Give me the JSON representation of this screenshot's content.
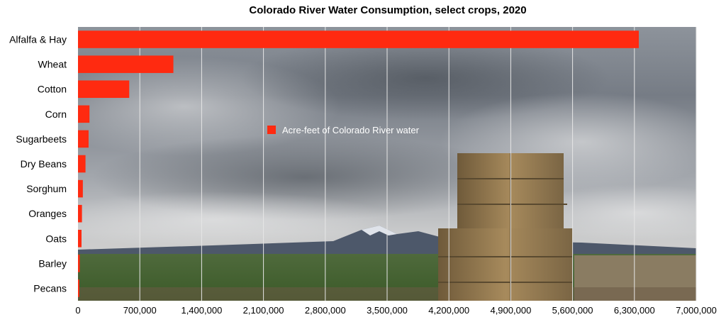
{
  "chart_data": {
    "type": "bar",
    "orientation": "horizontal",
    "title": "Colorado River Water Consumption, select crops, 2020",
    "xlabel": "",
    "ylabel": "",
    "categories": [
      "Alfalfa & Hay",
      "Wheat",
      "Cotton",
      "Corn",
      "Sugarbeets",
      "Dry Beans",
      "Sorghum",
      "Oranges",
      "Oats",
      "Barley",
      "Pecans"
    ],
    "series": [
      {
        "name": "Acre-feet of Colorado River water",
        "values": [
          6350000,
          1080000,
          580000,
          130000,
          120000,
          85000,
          55000,
          45000,
          40000,
          20000,
          15000
        ]
      }
    ],
    "xlim": [
      0,
      7000000
    ],
    "xticks": [
      0,
      700000,
      1400000,
      2100000,
      2800000,
      3500000,
      4200000,
      4900000,
      5600000,
      6300000,
      7000000
    ],
    "xtick_labels": [
      "0",
      "700,000",
      "1,400,000",
      "2,100,000",
      "2,800,000",
      "3,500,000",
      "4,200,000",
      "4,900,000",
      "5,600,000",
      "6,300,000",
      "7,000,000"
    ],
    "grid": "vertical",
    "legend": "center",
    "colors": {
      "bar": "#ff2a10"
    },
    "background": "photo of a field with stacked hay bales under a cloudy sky"
  }
}
